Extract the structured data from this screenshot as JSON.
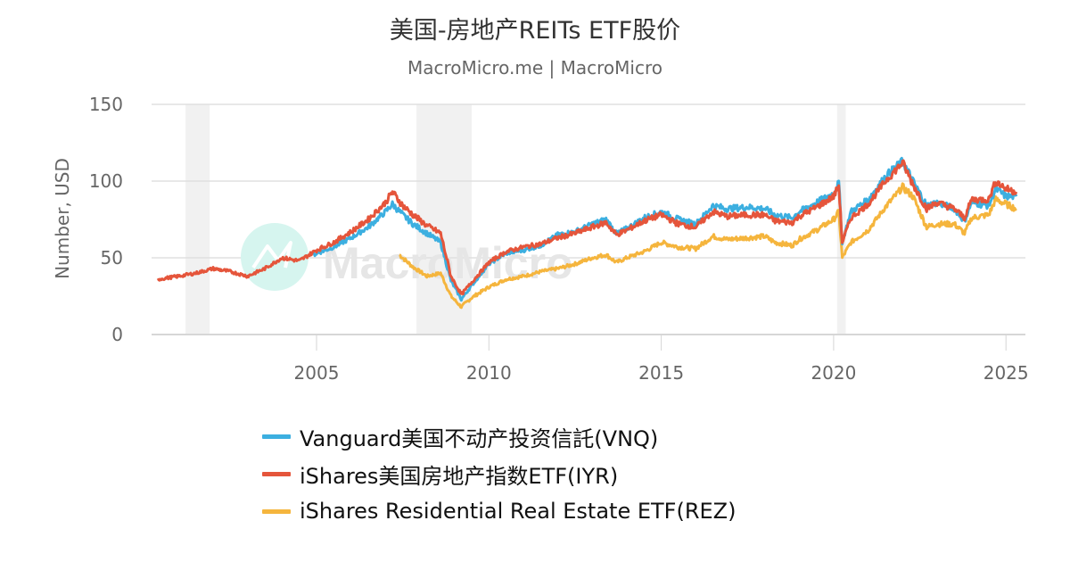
{
  "header": {
    "title": "美国-房地产REITs ETF股价",
    "subtitle": "MacroMicro.me | MacroMicro"
  },
  "watermark": {
    "text": "MacroMicro",
    "logo": "macromicro-logo-icon",
    "circle_color": "#d6f5ef"
  },
  "colors": {
    "VNQ": "#3cafe0",
    "IYR": "#e5553b",
    "REZ": "#f5b53d",
    "recession": "#f1f1f1",
    "grid": "#e0e0e0"
  },
  "chart_data": {
    "type": "line",
    "title": "美国-房地产REITs ETF股价",
    "subtitle": "MacroMicro.me | MacroMicro",
    "xlabel": "",
    "ylabel": "Number, USD",
    "ylim": [
      0,
      150
    ],
    "yticks": [
      0,
      50,
      100,
      150
    ],
    "xticks": [
      "2005",
      "2010",
      "2015",
      "2020",
      "2025"
    ],
    "xlim": [
      2000.1,
      2025.5
    ],
    "grid": "horizontal",
    "legend_position": "bottom",
    "recession_bands": [
      [
        2001.2,
        2001.9
      ],
      [
        2007.9,
        2009.5
      ],
      [
        2020.1,
        2020.35
      ]
    ],
    "series": [
      {
        "name": "Vanguard美国不动产投资信託(VNQ)",
        "key": "VNQ",
        "x": [
          2004.9,
          2005.5,
          2006.0,
          2006.5,
          2007.0,
          2007.2,
          2007.5,
          2007.8,
          2008.2,
          2008.6,
          2008.9,
          2009.2,
          2009.5,
          2010.0,
          2010.5,
          2011.0,
          2011.5,
          2012.0,
          2012.5,
          2013.0,
          2013.4,
          2013.7,
          2014.0,
          2014.5,
          2015.0,
          2015.5,
          2016.0,
          2016.5,
          2016.9,
          2017.5,
          2018.0,
          2018.3,
          2018.8,
          2019.0,
          2019.5,
          2020.0,
          2020.15,
          2020.25,
          2020.5,
          2021.0,
          2021.5,
          2022.0,
          2022.3,
          2022.7,
          2023.0,
          2023.5,
          2023.8,
          2024.0,
          2024.5,
          2024.7,
          2025.0,
          2025.3
        ],
        "values": [
          52,
          57,
          63,
          70,
          80,
          85,
          78,
          72,
          66,
          60,
          35,
          23,
          32,
          46,
          53,
          55,
          58,
          65,
          67,
          72,
          75,
          66,
          69,
          76,
          80,
          75,
          72,
          84,
          82,
          83,
          82,
          78,
          76,
          80,
          86,
          92,
          99,
          60,
          80,
          88,
          103,
          113,
          100,
          84,
          86,
          82,
          74,
          86,
          84,
          95,
          90,
          90
        ],
        "y_scale_note": "approximate, read from pixels"
      },
      {
        "name": "iShares美国房地产指数ETF(IYR)",
        "key": "IYR",
        "x": [
          2000.4,
          2001.0,
          2001.5,
          2002.0,
          2002.5,
          2003.0,
          2003.5,
          2004.0,
          2004.5,
          2005.0,
          2005.5,
          2006.0,
          2006.5,
          2007.0,
          2007.2,
          2007.5,
          2007.8,
          2008.2,
          2008.6,
          2008.9,
          2009.2,
          2009.5,
          2010.0,
          2010.5,
          2011.0,
          2011.5,
          2012.0,
          2012.5,
          2013.0,
          2013.4,
          2013.7,
          2014.0,
          2014.5,
          2015.0,
          2015.5,
          2016.0,
          2016.5,
          2016.9,
          2017.5,
          2018.0,
          2018.3,
          2018.8,
          2019.0,
          2019.5,
          2020.0,
          2020.15,
          2020.25,
          2020.5,
          2021.0,
          2021.5,
          2022.0,
          2022.3,
          2022.7,
          2023.0,
          2023.5,
          2023.8,
          2024.0,
          2024.5,
          2024.7,
          2025.0,
          2025.3
        ],
        "values": [
          36,
          38,
          40,
          43,
          41,
          38,
          43,
          50,
          48,
          55,
          60,
          67,
          75,
          86,
          93,
          84,
          78,
          71,
          66,
          38,
          26,
          34,
          47,
          54,
          57,
          59,
          63,
          66,
          70,
          73,
          65,
          68,
          74,
          78,
          72,
          70,
          80,
          77,
          78,
          78,
          74,
          73,
          77,
          83,
          90,
          97,
          60,
          76,
          85,
          100,
          112,
          98,
          82,
          86,
          82,
          76,
          88,
          88,
          100,
          95,
          93
        ]
      },
      {
        "name": "iShares Residential Real Estate ETF(REZ)",
        "key": "REZ",
        "x": [
          2007.4,
          2007.8,
          2008.2,
          2008.6,
          2008.9,
          2009.2,
          2009.5,
          2010.0,
          2010.5,
          2011.0,
          2011.5,
          2012.0,
          2012.5,
          2013.0,
          2013.4,
          2013.7,
          2014.0,
          2014.5,
          2015.0,
          2015.5,
          2016.0,
          2016.5,
          2016.9,
          2017.5,
          2018.0,
          2018.3,
          2018.8,
          2019.0,
          2019.5,
          2020.0,
          2020.15,
          2020.25,
          2020.5,
          2021.0,
          2021.5,
          2022.0,
          2022.3,
          2022.7,
          2023.0,
          2023.5,
          2023.8,
          2024.0,
          2024.5,
          2024.7,
          2025.0,
          2025.3
        ],
        "values": [
          52,
          44,
          38,
          40,
          25,
          18,
          24,
          31,
          36,
          38,
          41,
          43,
          46,
          50,
          52,
          47,
          50,
          54,
          60,
          57,
          56,
          64,
          62,
          63,
          64,
          60,
          58,
          62,
          68,
          75,
          80,
          50,
          60,
          68,
          83,
          96,
          90,
          70,
          72,
          72,
          66,
          76,
          78,
          88,
          85,
          82
        ]
      }
    ]
  },
  "axes": {
    "ylabel": "Number, USD",
    "yticks": [
      "0",
      "50",
      "100",
      "150"
    ],
    "xticks": [
      "2005",
      "2010",
      "2015",
      "2020",
      "2025"
    ]
  },
  "legend": {
    "items": [
      {
        "label": "Vanguard美国不动产投资信託(VNQ)",
        "color": "#3cafe0"
      },
      {
        "label": "iShares美国房地产指数ETF(IYR)",
        "color": "#e5553b"
      },
      {
        "label": "iShares Residential Real Estate ETF(REZ)",
        "color": "#f5b53d"
      }
    ]
  }
}
